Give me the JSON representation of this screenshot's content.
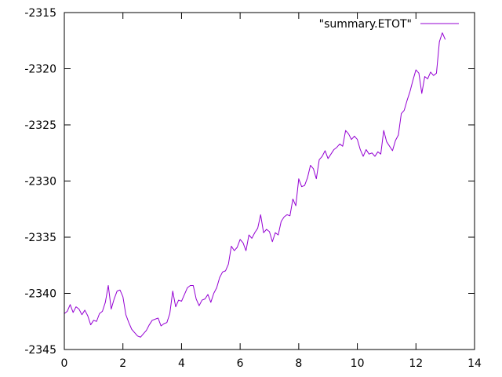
{
  "chart_data": {
    "type": "line",
    "title": "",
    "xlabel": "",
    "ylabel": "",
    "xlim": [
      0,
      14
    ],
    "ylim": [
      -2345,
      -2315
    ],
    "xticks": [
      0,
      2,
      4,
      6,
      8,
      10,
      12,
      14
    ],
    "yticks": [
      -2345,
      -2340,
      -2335,
      -2330,
      -2325,
      -2320,
      -2315
    ],
    "xtick_labels": [
      "0",
      "2",
      "4",
      "6",
      "8",
      "10",
      "12",
      "14"
    ],
    "ytick_labels": [
      "-2345",
      "-2340",
      "-2335",
      "-2330",
      "-2325",
      "-2320",
      "-2315"
    ],
    "grid": false,
    "legend": "top-right",
    "series": [
      {
        "name": "\"summary.ETOT\"",
        "color": "#9400d3",
        "x": [
          0.0,
          0.1,
          0.2,
          0.3,
          0.4,
          0.5,
          0.6,
          0.7,
          0.8,
          0.9,
          1.0,
          1.1,
          1.2,
          1.3,
          1.4,
          1.5,
          1.6,
          1.7,
          1.8,
          1.9,
          2.0,
          2.1,
          2.2,
          2.3,
          2.4,
          2.5,
          2.6,
          2.7,
          2.8,
          2.9,
          3.0,
          3.1,
          3.2,
          3.3,
          3.4,
          3.5,
          3.6,
          3.7,
          3.8,
          3.9,
          4.0,
          4.1,
          4.2,
          4.3,
          4.4,
          4.5,
          4.6,
          4.7,
          4.8,
          4.9,
          5.0,
          5.1,
          5.2,
          5.3,
          5.4,
          5.5,
          5.6,
          5.7,
          5.8,
          5.9,
          6.0,
          6.1,
          6.2,
          6.3,
          6.4,
          6.5,
          6.6,
          6.7,
          6.8,
          6.9,
          7.0,
          7.1,
          7.2,
          7.3,
          7.4,
          7.5,
          7.6,
          7.7,
          7.8,
          7.9,
          8.0,
          8.1,
          8.2,
          8.3,
          8.4,
          8.5,
          8.6,
          8.7,
          8.8,
          8.9,
          9.0,
          9.1,
          9.2,
          9.3,
          9.4,
          9.5,
          9.6,
          9.7,
          9.8,
          9.9,
          10.0,
          10.1,
          10.2,
          10.3,
          10.4,
          10.5,
          10.6,
          10.7,
          10.8,
          10.9,
          11.0,
          11.1,
          11.2,
          11.3,
          11.4,
          11.5,
          11.6,
          11.7,
          11.8,
          11.9,
          12.0,
          12.1,
          12.2,
          12.3,
          12.4,
          12.5,
          12.6,
          12.7,
          12.8,
          12.9,
          13.0
        ],
        "values": [
          -2341.8,
          -2341.6,
          -2341.0,
          -2341.7,
          -2341.2,
          -2341.4,
          -2341.9,
          -2341.5,
          -2342.0,
          -2342.8,
          -2342.4,
          -2342.5,
          -2341.8,
          -2341.6,
          -2340.8,
          -2339.3,
          -2341.4,
          -2340.5,
          -2339.8,
          -2339.7,
          -2340.3,
          -2341.9,
          -2342.6,
          -2343.2,
          -2343.5,
          -2343.8,
          -2343.9,
          -2343.6,
          -2343.3,
          -2342.8,
          -2342.4,
          -2342.3,
          -2342.2,
          -2342.9,
          -2342.7,
          -2342.6,
          -2341.8,
          -2339.8,
          -2341.2,
          -2340.6,
          -2340.7,
          -2340.1,
          -2339.5,
          -2339.3,
          -2339.3,
          -2340.5,
          -2341.1,
          -2340.6,
          -2340.5,
          -2340.1,
          -2340.8,
          -2340.0,
          -2339.5,
          -2338.6,
          -2338.1,
          -2338.0,
          -2337.4,
          -2335.8,
          -2336.2,
          -2335.9,
          -2335.2,
          -2335.5,
          -2336.2,
          -2334.8,
          -2335.1,
          -2334.6,
          -2334.2,
          -2333.0,
          -2334.6,
          -2334.3,
          -2334.5,
          -2335.4,
          -2334.6,
          -2334.8,
          -2333.6,
          -2333.2,
          -2333.0,
          -2333.1,
          -2331.6,
          -2332.2,
          -2329.8,
          -2330.5,
          -2330.4,
          -2329.7,
          -2328.6,
          -2328.9,
          -2329.8,
          -2328.1,
          -2327.8,
          -2327.3,
          -2328.0,
          -2327.6,
          -2327.2,
          -2327.0,
          -2326.7,
          -2326.9,
          -2325.5,
          -2325.8,
          -2326.3,
          -2326.0,
          -2326.3,
          -2327.2,
          -2327.8,
          -2327.2,
          -2327.6,
          -2327.5,
          -2327.8,
          -2327.4,
          -2327.6,
          -2325.5,
          -2326.5,
          -2326.9,
          -2327.3,
          -2326.4,
          -2325.9,
          -2324.0,
          -2323.7,
          -2322.8,
          -2322.0,
          -2321.0,
          -2320.1,
          -2320.4,
          -2322.2,
          -2320.7,
          -2320.9,
          -2320.3,
          -2320.6,
          -2320.4,
          -2317.6,
          -2316.8,
          -2317.4
        ]
      }
    ]
  }
}
